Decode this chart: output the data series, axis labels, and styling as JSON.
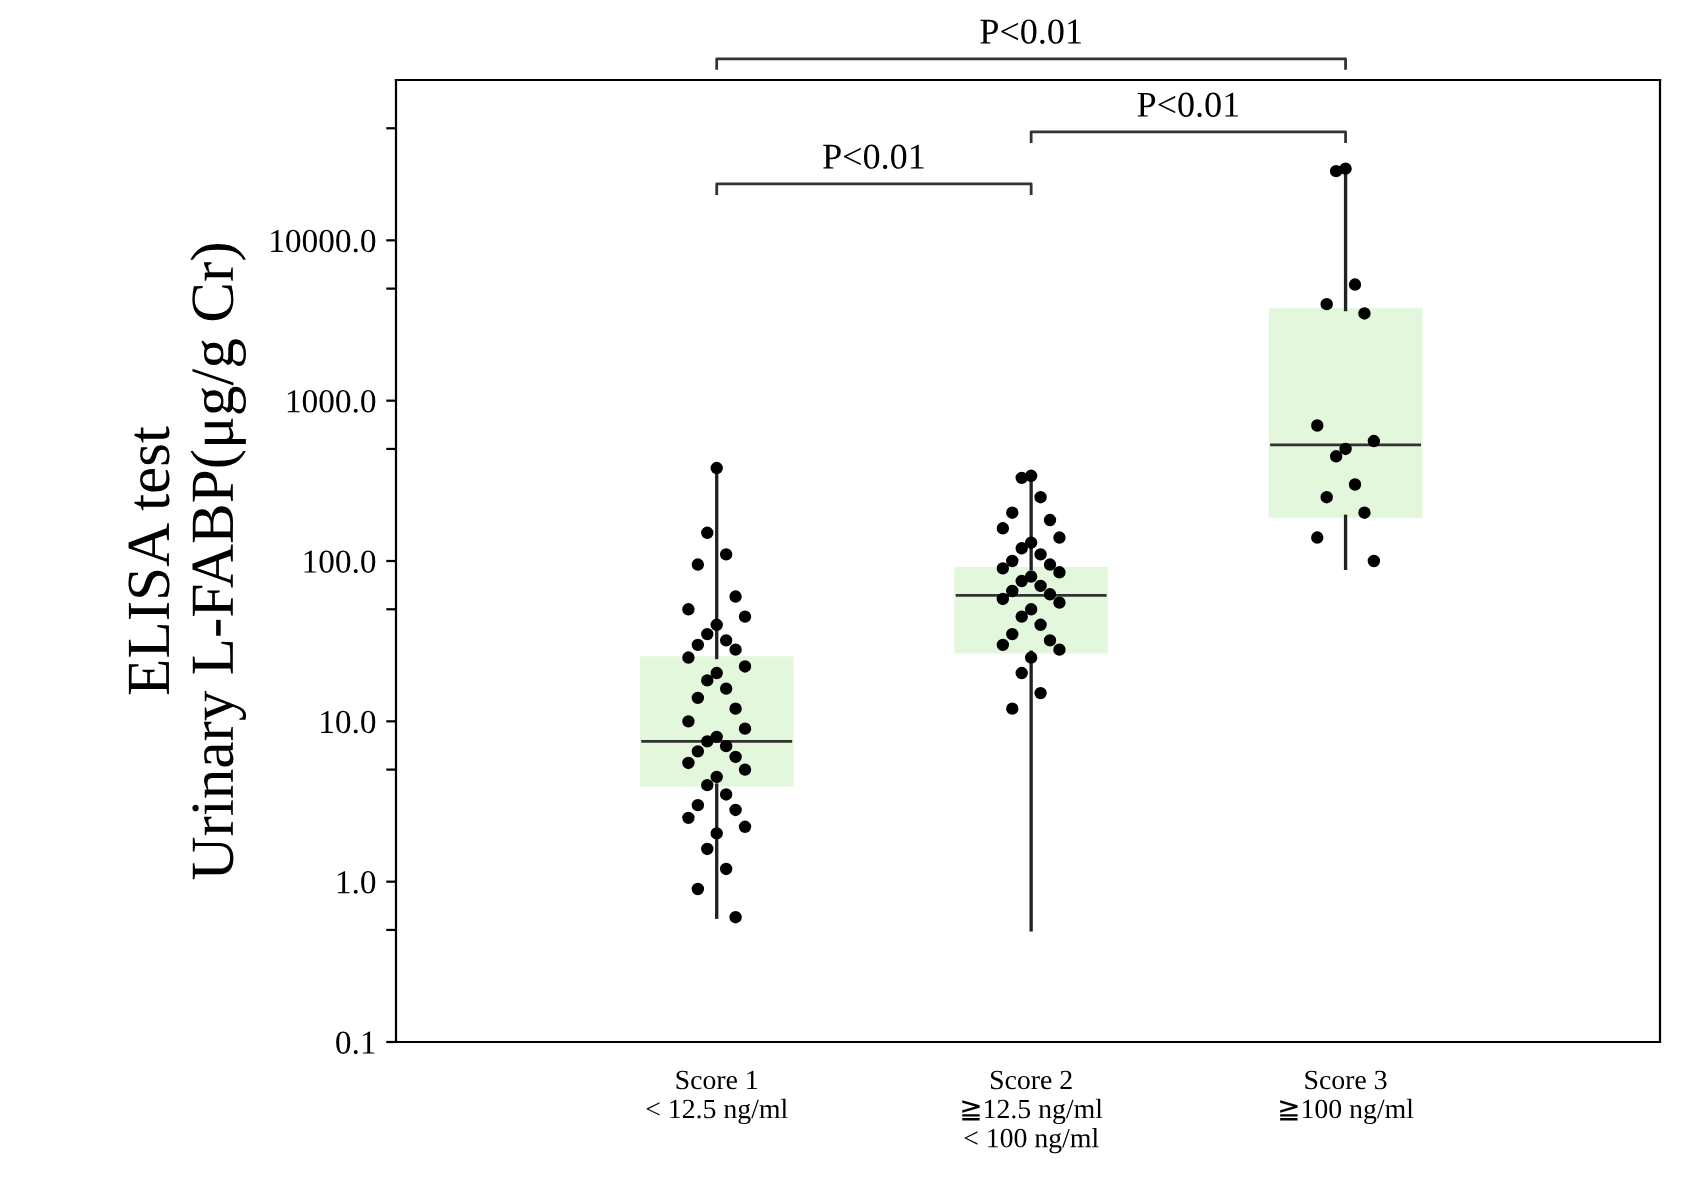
{
  "chart_data": {
    "type": "box",
    "ylabel": "ELISA test\nUrinary L-FABP(μg/g Cr)",
    "categories": [
      "Score 1\n< 12.5 ng/ml",
      "Score 2\n≧12.5 ng/ml\n< 100 ng/ml",
      "Score 3\n≧100 ng/ml"
    ],
    "boxes": [
      {
        "low": 0.6,
        "q1": 4.0,
        "median": 7.5,
        "q3": 25,
        "high": 380
      },
      {
        "low": 0.5,
        "q1": 27,
        "median": 61,
        "q3": 90,
        "high": 340
      },
      {
        "low": 90,
        "q1": 190,
        "median": 530,
        "q3": 3700,
        "high": 28000
      }
    ],
    "color": "#e2f7dc",
    "log": true,
    "ylim": [
      0.1,
      100000
    ],
    "yticks": [
      {
        "value": 0.1,
        "label": "0.1"
      },
      {
        "value": 0.5,
        "label": null
      },
      {
        "value": 1,
        "label": "1.0"
      },
      {
        "value": 5,
        "label": null
      },
      {
        "value": 10,
        "label": "10.0"
      },
      {
        "value": 50,
        "label": null
      },
      {
        "value": 100,
        "label": "100.0"
      },
      {
        "value": 500,
        "label": null
      },
      {
        "value": 1000,
        "label": "1000.0"
      },
      {
        "value": 5000,
        "label": null
      },
      {
        "value": 10000,
        "label": "10000.0"
      },
      {
        "value": 50000,
        "label": null
      }
    ],
    "grid": false,
    "series": [
      {
        "type": "scatter",
        "color": "#000000",
        "marker": "circle",
        "x": [
          "Score 1\n< 12.5 ng/ml",
          "Score 1\n< 12.5 ng/ml",
          "Score 1\n< 12.5 ng/ml",
          "Score 1\n< 12.5 ng/ml",
          "Score 1\n< 12.5 ng/ml",
          "Score 1\n< 12.5 ng/ml",
          "Score 1\n< 12.5 ng/ml",
          "Score 1\n< 12.5 ng/ml",
          "Score 1\n< 12.5 ng/ml",
          "Score 1\n< 12.5 ng/ml",
          "Score 1\n< 12.5 ng/ml",
          "Score 1\n< 12.5 ng/ml",
          "Score 1\n< 12.5 ng/ml",
          "Score 1\n< 12.5 ng/ml",
          "Score 1\n< 12.5 ng/ml",
          "Score 1\n< 12.5 ng/ml",
          "Score 1\n< 12.5 ng/ml",
          "Score 1\n< 12.5 ng/ml",
          "Score 1\n< 12.5 ng/ml",
          "Score 1\n< 12.5 ng/ml",
          "Score 1\n< 12.5 ng/ml",
          "Score 1\n< 12.5 ng/ml",
          "Score 1\n< 12.5 ng/ml",
          "Score 1\n< 12.5 ng/ml",
          "Score 1\n< 12.5 ng/ml",
          "Score 1\n< 12.5 ng/ml",
          "Score 1\n< 12.5 ng/ml",
          "Score 1\n< 12.5 ng/ml",
          "Score 1\n< 12.5 ng/ml",
          "Score 1\n< 12.5 ng/ml",
          "Score 1\n< 12.5 ng/ml",
          "Score 1\n< 12.5 ng/ml",
          "Score 1\n< 12.5 ng/ml",
          "Score 1\n< 12.5 ng/ml",
          "Score 1\n< 12.5 ng/ml",
          "Score 1\n< 12.5 ng/ml",
          "Score 1\n< 12.5 ng/ml",
          "Score 1\n< 12.5 ng/ml",
          "Score 1\n< 12.5 ng/ml",
          "Score 1\n< 12.5 ng/ml",
          "Score 2\n≧12.5 ng/ml\n< 100 ng/ml",
          "Score 2\n≧12.5 ng/ml\n< 100 ng/ml",
          "Score 2\n≧12.5 ng/ml\n< 100 ng/ml",
          "Score 2\n≧12.5 ng/ml\n< 100 ng/ml",
          "Score 2\n≧12.5 ng/ml\n< 100 ng/ml",
          "Score 2\n≧12.5 ng/ml\n< 100 ng/ml",
          "Score 2\n≧12.5 ng/ml\n< 100 ng/ml",
          "Score 2\n≧12.5 ng/ml\n< 100 ng/ml",
          "Score 2\n≧12.5 ng/ml\n< 100 ng/ml",
          "Score 2\n≧12.5 ng/ml\n< 100 ng/ml",
          "Score 2\n≧12.5 ng/ml\n< 100 ng/ml",
          "Score 2\n≧12.5 ng/ml\n< 100 ng/ml",
          "Score 2\n≧12.5 ng/ml\n< 100 ng/ml",
          "Score 2\n≧12.5 ng/ml\n< 100 ng/ml",
          "Score 2\n≧12.5 ng/ml\n< 100 ng/ml",
          "Score 2\n≧12.5 ng/ml\n< 100 ng/ml",
          "Score 2\n≧12.5 ng/ml\n< 100 ng/ml",
          "Score 2\n≧12.5 ng/ml\n< 100 ng/ml",
          "Score 2\n≧12.5 ng/ml\n< 100 ng/ml",
          "Score 2\n≧12.5 ng/ml\n< 100 ng/ml",
          "Score 2\n≧12.5 ng/ml\n< 100 ng/ml",
          "Score 2\n≧12.5 ng/ml\n< 100 ng/ml",
          "Score 2\n≧12.5 ng/ml\n< 100 ng/ml",
          "Score 2\n≧12.5 ng/ml\n< 100 ng/ml",
          "Score 2\n≧12.5 ng/ml\n< 100 ng/ml",
          "Score 2\n≧12.5 ng/ml\n< 100 ng/ml",
          "Score 2\n≧12.5 ng/ml\n< 100 ng/ml",
          "Score 2\n≧12.5 ng/ml\n< 100 ng/ml",
          "Score 2\n≧12.5 ng/ml\n< 100 ng/ml",
          "Score 2\n≧12.5 ng/ml\n< 100 ng/ml",
          "Score 2\n≧12.5 ng/ml\n< 100 ng/ml",
          "Score 2\n≧12.5 ng/ml\n< 100 ng/ml",
          "Score 3\n≧100 ng/ml",
          "Score 3\n≧100 ng/ml",
          "Score 3\n≧100 ng/ml",
          "Score 3\n≧100 ng/ml",
          "Score 3\n≧100 ng/ml",
          "Score 3\n≧100 ng/ml",
          "Score 3\n≧100 ng/ml",
          "Score 3\n≧100 ng/ml",
          "Score 3\n≧100 ng/ml",
          "Score 3\n≧100 ng/ml",
          "Score 3\n≧100 ng/ml",
          "Score 3\n≧100 ng/ml",
          "Score 3\n≧100 ng/ml",
          "Score 3\n≧100 ng/ml"
        ],
        "values": [
          380,
          150,
          110,
          95,
          60,
          50,
          45,
          40,
          35,
          32,
          30,
          28,
          25,
          22,
          20,
          18,
          16,
          14,
          12,
          10,
          9,
          8,
          7.5,
          7,
          6.5,
          6,
          5.5,
          5,
          4.5,
          4,
          3.5,
          3,
          2.8,
          2.5,
          2.2,
          2,
          1.6,
          1.2,
          0.9,
          0.6,
          340,
          330,
          250,
          200,
          180,
          160,
          140,
          130,
          120,
          110,
          100,
          95,
          90,
          85,
          80,
          75,
          70,
          65,
          62,
          58,
          55,
          50,
          45,
          40,
          35,
          32,
          30,
          28,
          25,
          20,
          15,
          12,
          28000,
          27000,
          5300,
          4000,
          3500,
          700,
          560,
          500,
          450,
          300,
          250,
          200,
          140,
          100
        ]
      }
    ],
    "annotations": [
      "P<0.01",
      "P<0.01",
      "P<0.01"
    ]
  }
}
